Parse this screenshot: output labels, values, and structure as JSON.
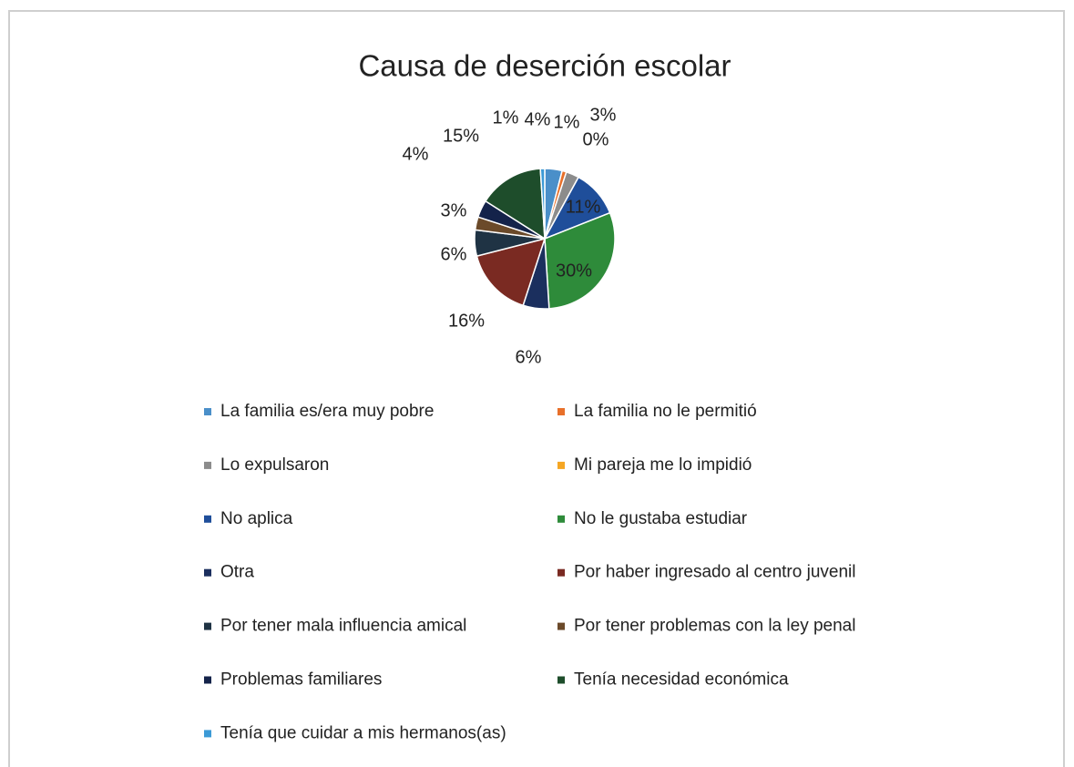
{
  "chart_data": {
    "type": "pie",
    "title": "Causa de deserción escolar",
    "categories": [
      "La familia es/era muy pobre",
      "La familia no le permitió",
      "Lo expulsaron",
      "Mi pareja me lo impidió",
      "No aplica",
      "No le gustaba estudiar",
      "Otra",
      "Por haber ingresado al centro juvenil",
      "Por tener mala influencia amical",
      "Por tener problemas con la ley penal",
      "Problemas familiares",
      "Tenía necesidad económica",
      "Tenía que cuidar a mis hermanos(as)"
    ],
    "values": [
      4,
      1,
      3,
      0,
      11,
      30,
      6,
      16,
      6,
      3,
      4,
      15,
      1
    ],
    "value_labels": [
      "4%",
      "1%",
      "3%",
      "0%",
      "11%",
      "30%",
      "6%",
      "16%",
      "6%",
      "3%",
      "4%",
      "15%",
      "1%"
    ],
    "colors": [
      "#4a8fc9",
      "#e8702a",
      "#8c8c8c",
      "#f5a623",
      "#1f4e9a",
      "#2e8b3a",
      "#1b2f5e",
      "#7a2a22",
      "#1f3344",
      "#6b4a2a",
      "#14234a",
      "#1e4d2b",
      "#3c9ad6"
    ],
    "legend": "bottom"
  }
}
